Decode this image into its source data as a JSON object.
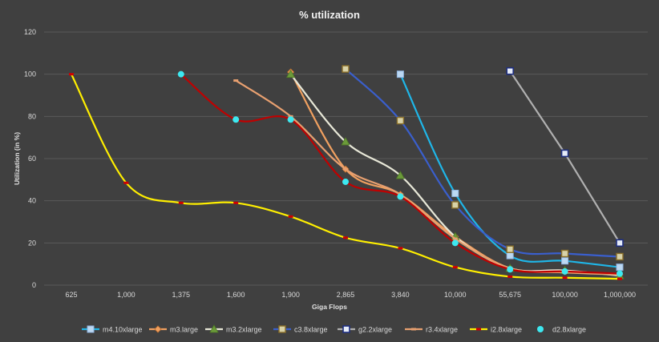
{
  "chart_data": {
    "type": "line",
    "title": "% utilization",
    "xlabel": "Giga Flops",
    "ylabel": "Utilization (in %)",
    "ylim": [
      0,
      120
    ],
    "yticks": [
      "0",
      "20",
      "40",
      "60",
      "80",
      "100",
      "120"
    ],
    "categories": [
      "625",
      "1,000",
      "1,375",
      "1,600",
      "1,900",
      "2,865",
      "3,840",
      "10,000",
      "55,675",
      "100,000",
      "1,000,000"
    ],
    "grid": "horizontal",
    "legend_position": "bottom",
    "series": [
      {
        "name": "m4.10xlarge",
        "color": "#1fb6e8",
        "marker": "square-light",
        "smooth": true,
        "values": [
          null,
          null,
          null,
          null,
          null,
          null,
          100,
          43.5,
          14,
          11.5,
          8.5
        ]
      },
      {
        "name": "m3.large",
        "color": "#f0a060",
        "marker": "diamond",
        "smooth": true,
        "values": [
          null,
          null,
          null,
          null,
          101,
          55,
          43,
          23,
          8,
          6.5,
          5
        ]
      },
      {
        "name": "m3.2xlarge",
        "color": "#e8e8d8",
        "marker": "triangle-green",
        "smooth": true,
        "values": [
          null,
          null,
          null,
          null,
          100,
          68,
          52,
          23,
          8,
          7,
          4.5
        ]
      },
      {
        "name": "c3.8xlarge",
        "color": "#3a5fcd",
        "marker": "square-outline",
        "smooth": true,
        "values": [
          null,
          null,
          null,
          null,
          null,
          102.5,
          78,
          38,
          17,
          15,
          13.5
        ]
      },
      {
        "name": "g2.2xlarge",
        "color": "#b0b0b0",
        "marker": "square-navy",
        "smooth": false,
        "values": [
          null,
          null,
          null,
          null,
          null,
          null,
          null,
          null,
          101.5,
          62.5,
          20
        ]
      },
      {
        "name": "r3.4xlarge",
        "color": "#e8a070",
        "marker": "dash",
        "smooth": true,
        "values": [
          null,
          null,
          null,
          97,
          80,
          55,
          43,
          22,
          8,
          6,
          5
        ]
      },
      {
        "name": "i2.8xlarge",
        "color": "#ffef00",
        "marker": "dash-red",
        "smooth": true,
        "values": [
          100,
          48.5,
          39,
          39,
          32.5,
          22.5,
          17.5,
          8.5,
          4,
          3.5,
          3
        ]
      },
      {
        "name": "d2.8xlarge",
        "color": "#c00000",
        "marker": "circle-cyan",
        "smooth": true,
        "values": [
          null,
          null,
          100,
          78.5,
          78.5,
          49,
          42,
          20,
          7.5,
          6.5,
          5.5
        ]
      }
    ]
  }
}
